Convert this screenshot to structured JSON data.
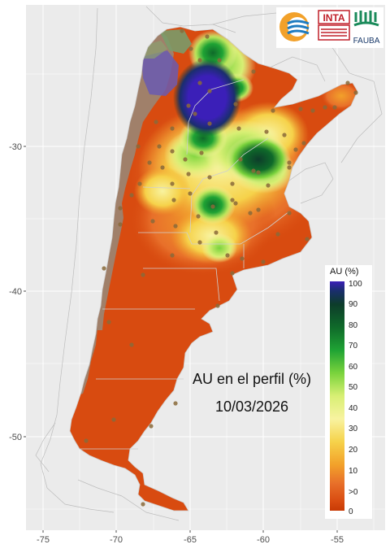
{
  "map": {
    "title": "AU en el perfil (%)",
    "date": "10/03/2026",
    "x_ticks": [
      "-75",
      "-70",
      "-65",
      "-60",
      "-55"
    ],
    "y_ticks": [
      "-30",
      "-40",
      "-50"
    ],
    "background_color": "#ebebeb",
    "grid_color": "#ffffff",
    "no_data_color": "#a0806a"
  },
  "legend": {
    "title": "AU (%)",
    "labels": [
      "100",
      "90",
      "80",
      "70",
      "60",
      "50",
      "40",
      "30",
      "20",
      "10",
      ">0",
      "0"
    ],
    "colors": [
      "#3b1fb8",
      "#0d3c2a",
      "#1fa334",
      "#7ad33c",
      "#f8f3a0",
      "#f6d24a",
      "#e8702a",
      "#c83a05"
    ]
  },
  "logos": {
    "inta": "INTA",
    "fauba": "FAUBA"
  }
}
